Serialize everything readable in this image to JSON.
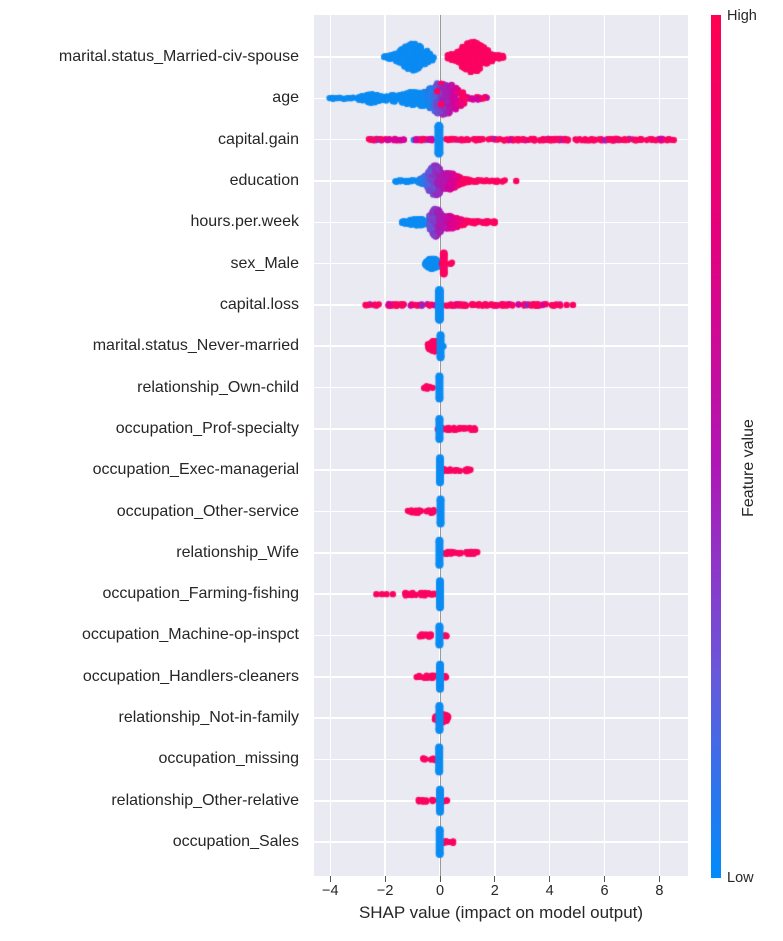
{
  "chart_data": {
    "type": "scatter",
    "variant": "shap_beeswarm_summary",
    "title": "",
    "xlabel": "SHAP value (impact on model output)",
    "ylabel": "",
    "x_ticks": [
      -4,
      -2,
      0,
      2,
      4,
      6,
      8
    ],
    "x_range": [
      -4.6,
      9.05
    ],
    "grid": true,
    "colors": {
      "B": "#0a8bf2",
      "R": "#fb0360",
      "M": "#d6019b",
      "P": "#a21fb5",
      "V": "#6456d8"
    },
    "colorbar": {
      "label": "Feature value",
      "high": "High",
      "low": "Low",
      "high_color": "#ff0051",
      "low_color": "#008bfb",
      "gradient_stops": [
        "#ff0051 0%",
        "#e4017e 26%",
        "#b016b6 52%",
        "#6a57da 76%",
        "#008bfb 100%"
      ]
    },
    "features": [
      {
        "name": "marital.status_Married-civ-spouse",
        "elements": [
          {
            "t": "violin",
            "x0": -2.05,
            "x1": -0.22,
            "peak": -0.98,
            "sigma": 0.3,
            "ph": 16,
            "th": 3,
            "color": "B"
          },
          {
            "t": "violin",
            "x0": 0.28,
            "x1": 2.32,
            "peak": 1.2,
            "sigma": 0.3,
            "ph": 18,
            "th": 3.5,
            "color": "R"
          }
        ]
      },
      {
        "name": "age",
        "elements": [
          {
            "t": "strip",
            "x0": -4.05,
            "x1": -2.7,
            "half": 3.4,
            "colors": [
              [
                "B",
                1
              ]
            ]
          },
          {
            "t": "violin",
            "x0": -2.95,
            "x1": -1.8,
            "peak": -2.5,
            "sigma": 0.2,
            "ph": 7,
            "th": 3,
            "color": "B"
          },
          {
            "t": "violin",
            "x0": -2.0,
            "x1": -0.3,
            "peak": -0.6,
            "sigma": 0.55,
            "ph": 10,
            "th": 4,
            "color": "B"
          },
          {
            "t": "violin",
            "x0": -0.45,
            "x1": 0.88,
            "peak": 0.12,
            "sigma": 0.34,
            "ph": 19,
            "th": 5,
            "xstops": [
              [
                -0.45,
                "B"
              ],
              [
                -0.12,
                "V"
              ],
              [
                0.18,
                "P"
              ],
              [
                0.5,
                "M"
              ],
              [
                0.88,
                "R"
              ]
            ],
            "speckle": [
              "R",
              "P"
            ],
            "sp": 0.05
          },
          {
            "t": "strip",
            "x0": 0.85,
            "x1": 1.75,
            "half": 4,
            "colors": [
              [
                "M",
                0.55
              ],
              [
                "R",
                0.45
              ]
            ]
          },
          {
            "t": "dots",
            "xs": [
              -0.1,
              0.04
            ],
            "dys": [
              -7,
              6
            ],
            "color": "R"
          }
        ]
      },
      {
        "name": "capital.gain",
        "elements": [
          {
            "t": "strip",
            "x0": -2.6,
            "x1": -0.28,
            "half": 3.2,
            "colors": [
              [
                "R",
                0.5
              ],
              [
                "M",
                0.27
              ],
              [
                "P",
                0.15
              ],
              [
                "B",
                0.08
              ]
            ]
          },
          {
            "t": "strip",
            "x0": 0.22,
            "x1": 8.55,
            "half": 3.2,
            "colors": [
              [
                "R",
                0.88
              ],
              [
                "M",
                0.08
              ],
              [
                "P",
                0.04
              ]
            ]
          },
          {
            "t": "vbar",
            "x": -0.04,
            "half": 18,
            "w": 9,
            "color": "B"
          }
        ]
      },
      {
        "name": "education",
        "elements": [
          {
            "t": "strip",
            "x0": -1.68,
            "x1": -0.62,
            "half": 3.6,
            "colors": [
              [
                "B",
                1
              ]
            ]
          },
          {
            "t": "violin",
            "x0": -0.8,
            "x1": 0.1,
            "peak": -0.18,
            "sigma": 0.17,
            "ph": 18,
            "th": 4,
            "xstops": [
              [
                -0.8,
                "B"
              ],
              [
                -0.4,
                "V"
              ],
              [
                -0.05,
                "P"
              ],
              [
                0.1,
                "P"
              ]
            ]
          },
          {
            "t": "violin",
            "x0": 0.0,
            "x1": 1.1,
            "peak": 0.33,
            "sigma": 0.2,
            "ph": 11,
            "th": 4,
            "xstops": [
              [
                0,
                "P"
              ],
              [
                0.35,
                "M"
              ],
              [
                0.8,
                "R"
              ],
              [
                1.1,
                "R"
              ]
            ]
          },
          {
            "t": "strip",
            "x0": 1.05,
            "x1": 2.5,
            "half": 3.2,
            "colors": [
              [
                "R",
                1
              ]
            ]
          },
          {
            "t": "dots",
            "xs": [
              2.78
            ],
            "color": "R"
          }
        ]
      },
      {
        "name": "hours.per.week",
        "elements": [
          {
            "t": "violin",
            "x0": -1.38,
            "x1": -0.48,
            "peak": -0.82,
            "sigma": 0.22,
            "ph": 6,
            "th": 3.2,
            "color": "B"
          },
          {
            "t": "violin",
            "x0": -0.42,
            "x1": 0.08,
            "peak": -0.15,
            "sigma": 0.13,
            "ph": 17,
            "th": 4,
            "xstops": [
              [
                -0.42,
                "V"
              ],
              [
                -0.15,
                "P"
              ],
              [
                0.08,
                "P"
              ]
            ]
          },
          {
            "t": "violin",
            "x0": 0.02,
            "x1": 2.0,
            "peak": 0.32,
            "sigma": 0.26,
            "ph": 9,
            "th": 3.6,
            "xstops": [
              [
                0.02,
                "P"
              ],
              [
                0.3,
                "M"
              ],
              [
                0.9,
                "R"
              ],
              [
                2,
                "R"
              ]
            ]
          }
        ]
      },
      {
        "name": "sex_Male",
        "elements": [
          {
            "t": "violin",
            "x0": -0.58,
            "x1": -0.06,
            "peak": -0.28,
            "sigma": 0.13,
            "ph": 8,
            "th": 3.2,
            "color": "B"
          },
          {
            "t": "strip",
            "x0": 0.02,
            "x1": 0.46,
            "half": 3.6,
            "colors": [
              [
                "R",
                1
              ]
            ]
          },
          {
            "t": "vbar",
            "x": 0.14,
            "half": 14,
            "w": 8,
            "color": "R"
          }
        ]
      },
      {
        "name": "capital.loss",
        "elements": [
          {
            "t": "strip",
            "x0": -2.75,
            "x1": 4.45,
            "half": 3.4,
            "colors": [
              [
                "R",
                0.8
              ],
              [
                "M",
                0.14
              ],
              [
                "P",
                0.06
              ]
            ]
          },
          {
            "t": "dots",
            "xs": [
              4.62,
              4.85
            ],
            "color": "R"
          },
          {
            "t": "vbar",
            "x": -0.02,
            "half": 19,
            "w": 9,
            "color": "B"
          }
        ]
      },
      {
        "name": "marital.status_Never-married",
        "elements": [
          {
            "t": "violin",
            "x0": -0.44,
            "x1": -0.02,
            "peak": -0.2,
            "sigma": 0.11,
            "ph": 8,
            "th": 3.2,
            "color": "R"
          },
          {
            "t": "strip",
            "x0": 0.0,
            "x1": 0.16,
            "half": 3,
            "colors": [
              [
                "B",
                1
              ]
            ]
          },
          {
            "t": "vbar",
            "x": 0.02,
            "half": 15,
            "w": 8,
            "color": "B"
          }
        ]
      },
      {
        "name": "relationship_Own-child",
        "elements": [
          {
            "t": "strip",
            "x0": -0.62,
            "x1": -0.22,
            "half": 4,
            "colors": [
              [
                "R",
                1
              ]
            ]
          },
          {
            "t": "vbar",
            "x": -0.02,
            "half": 15,
            "w": 8,
            "color": "B"
          }
        ]
      },
      {
        "name": "occupation_Prof-specialty",
        "elements": [
          {
            "t": "strip",
            "x0": -0.12,
            "x1": 1.3,
            "half": 3.8,
            "colors": [
              [
                "R",
                1
              ]
            ]
          },
          {
            "t": "vbar",
            "x": -0.02,
            "half": 14,
            "w": 8,
            "color": "B"
          }
        ]
      },
      {
        "name": "occupation_Exec-managerial",
        "elements": [
          {
            "t": "strip",
            "x0": 0.06,
            "x1": 1.15,
            "half": 3.8,
            "colors": [
              [
                "R",
                1
              ]
            ]
          },
          {
            "t": "vbar",
            "x": 0,
            "half": 16,
            "w": 8,
            "color": "B"
          }
        ]
      },
      {
        "name": "occupation_Other-service",
        "elements": [
          {
            "t": "strip",
            "x0": -1.18,
            "x1": -0.18,
            "half": 4,
            "colors": [
              [
                "R",
                1
              ]
            ]
          },
          {
            "t": "vbar",
            "x": 0.02,
            "half": 16,
            "w": 8,
            "color": "B"
          }
        ]
      },
      {
        "name": "relationship_Wife",
        "elements": [
          {
            "t": "strip",
            "x0": 0.08,
            "x1": 1.38,
            "half": 3.8,
            "colors": [
              [
                "R",
                1
              ]
            ]
          },
          {
            "t": "vbar",
            "x": -0.02,
            "half": 16,
            "w": 8,
            "color": "B"
          }
        ]
      },
      {
        "name": "occupation_Farming-fishing",
        "elements": [
          {
            "t": "dots",
            "xs": [
              -2.32,
              -2.12,
              -1.95,
              -1.72
            ],
            "color": "R"
          },
          {
            "t": "strip",
            "x0": -1.38,
            "x1": -0.15,
            "half": 4,
            "colors": [
              [
                "R",
                1
              ]
            ]
          },
          {
            "t": "vbar",
            "x": 0,
            "half": 17,
            "w": 8,
            "color": "B"
          }
        ]
      },
      {
        "name": "occupation_Machine-op-inspct",
        "elements": [
          {
            "t": "strip",
            "x0": -0.78,
            "x1": -0.2,
            "half": 3.8,
            "colors": [
              [
                "R",
                1
              ]
            ]
          },
          {
            "t": "strip",
            "x0": 0.08,
            "x1": 0.26,
            "half": 3.2,
            "colors": [
              [
                "R",
                1
              ]
            ]
          },
          {
            "t": "vbar",
            "x": -0.02,
            "half": 13,
            "w": 8,
            "color": "B"
          }
        ]
      },
      {
        "name": "occupation_Handlers-cleaners",
        "elements": [
          {
            "t": "strip",
            "x0": -0.88,
            "x1": -0.22,
            "half": 3.8,
            "colors": [
              [
                "R",
                1
              ]
            ]
          },
          {
            "t": "strip",
            "x0": 0.1,
            "x1": 0.3,
            "half": 3.2,
            "colors": [
              [
                "R",
                1
              ]
            ]
          },
          {
            "t": "vbar",
            "x": 0,
            "half": 16,
            "w": 8,
            "color": "B"
          }
        ]
      },
      {
        "name": "relationship_Not-in-family",
        "elements": [
          {
            "t": "violin",
            "x0": -0.18,
            "x1": 0.3,
            "peak": 0.08,
            "sigma": 0.11,
            "ph": 7,
            "th": 3.2,
            "color": "R"
          },
          {
            "t": "vbar",
            "x": -0.02,
            "half": 16,
            "w": 8,
            "color": "B"
          }
        ]
      },
      {
        "name": "occupation_missing",
        "elements": [
          {
            "t": "strip",
            "x0": -0.62,
            "x1": -0.16,
            "half": 3.6,
            "colors": [
              [
                "R",
                1
              ]
            ]
          },
          {
            "t": "vbar",
            "x": -0.03,
            "half": 16,
            "w": 8,
            "color": "B"
          }
        ]
      },
      {
        "name": "relationship_Other-relative",
        "elements": [
          {
            "t": "strip",
            "x0": -0.85,
            "x1": -0.2,
            "half": 3.8,
            "colors": [
              [
                "R",
                1
              ]
            ]
          },
          {
            "t": "strip",
            "x0": 0.1,
            "x1": 0.28,
            "half": 3.2,
            "colors": [
              [
                "R",
                1
              ]
            ]
          },
          {
            "t": "vbar",
            "x": 0,
            "half": 15,
            "w": 8,
            "color": "B"
          }
        ]
      },
      {
        "name": "occupation_Sales",
        "elements": [
          {
            "t": "strip",
            "x0": 0.07,
            "x1": 0.52,
            "half": 3.6,
            "colors": [
              [
                "R",
                1
              ]
            ]
          },
          {
            "t": "vbar",
            "x": -0.01,
            "half": 16,
            "w": 8,
            "color": "B"
          }
        ]
      }
    ]
  }
}
